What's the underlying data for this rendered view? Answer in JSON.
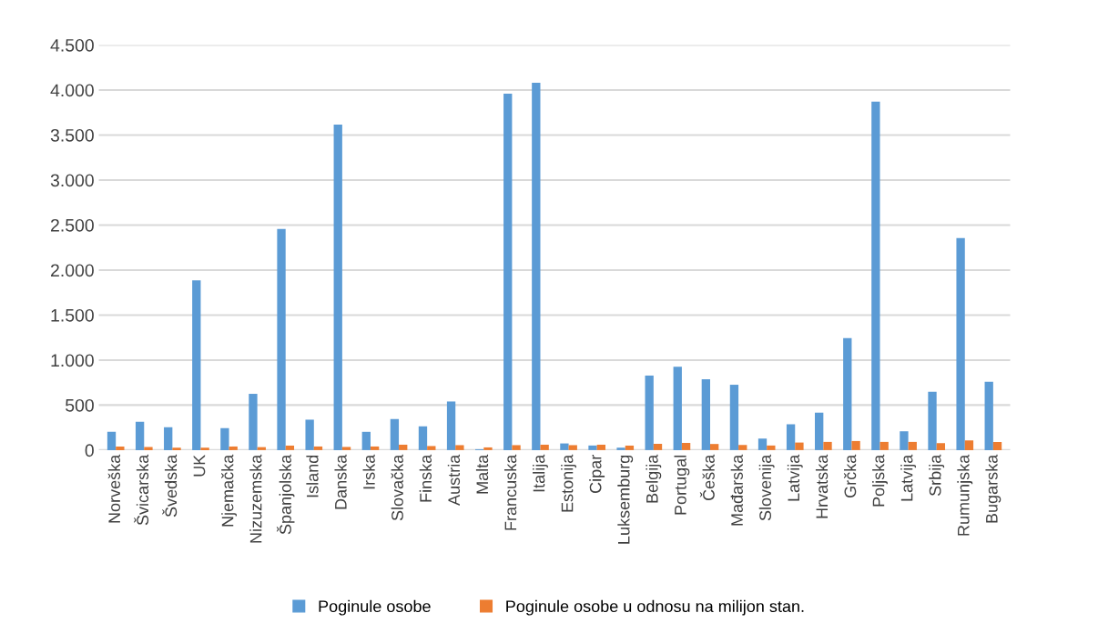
{
  "chart_data": {
    "type": "bar",
    "categories": [
      "Norveška",
      "Švicarska",
      "Švedska",
      "UK",
      "Njemačka",
      "Nizuzemska",
      "Španjolska",
      "Island",
      "Danska",
      "Irska",
      "Slovačka",
      "Finska",
      "Austria",
      "Malta",
      "Francuska",
      "Italija",
      "Estonija",
      "Cipar",
      "Luksemburg",
      "Belgija",
      "Portugal",
      "Češka",
      "Mađarska",
      "Slovenija",
      "Latvija",
      "Hrvatska",
      "Grčka",
      "Poljska",
      "Latvija",
      "Srbija",
      "Rumunjska",
      "Bugarska"
    ],
    "series": [
      {
        "name": "Poginule osobe",
        "color": "#5b9bd5",
        "values": [
          203,
          314,
          253,
          1885,
          243,
          625,
          2456,
          338,
          3615,
          203,
          345,
          264,
          540,
          10,
          3959,
          4081,
          74,
          51,
          27,
          828,
          926,
          787,
          726,
          128,
          287,
          416,
          1243,
          3872,
          209,
          649,
          2355,
          760
        ]
      },
      {
        "name": "Poginule osobe u odnosu na milijon stan.",
        "color": "#ed7d31",
        "values": [
          40,
          35,
          28,
          28,
          40,
          33,
          50,
          40,
          35,
          40,
          60,
          45,
          55,
          30,
          55,
          60,
          55,
          60,
          50,
          70,
          80,
          68,
          57,
          51,
          84,
          91,
          101,
          91,
          91,
          78,
          108,
          91
        ]
      }
    ],
    "ylim": [
      0,
      4500
    ],
    "yticks": [
      {
        "value": 0,
        "label": "0"
      },
      {
        "value": 500,
        "label": "500"
      },
      {
        "value": 1000,
        "label": "1.000"
      },
      {
        "value": 1500,
        "label": "1.500"
      },
      {
        "value": 2000,
        "label": "2.000"
      },
      {
        "value": 2500,
        "label": "2.500"
      },
      {
        "value": 3000,
        "label": "3.000"
      },
      {
        "value": 3500,
        "label": "3.500"
      },
      {
        "value": 4000,
        "label": "4.000"
      },
      {
        "value": 4500,
        "label": "4.500"
      }
    ],
    "grid": "y",
    "legend": "bottom"
  }
}
